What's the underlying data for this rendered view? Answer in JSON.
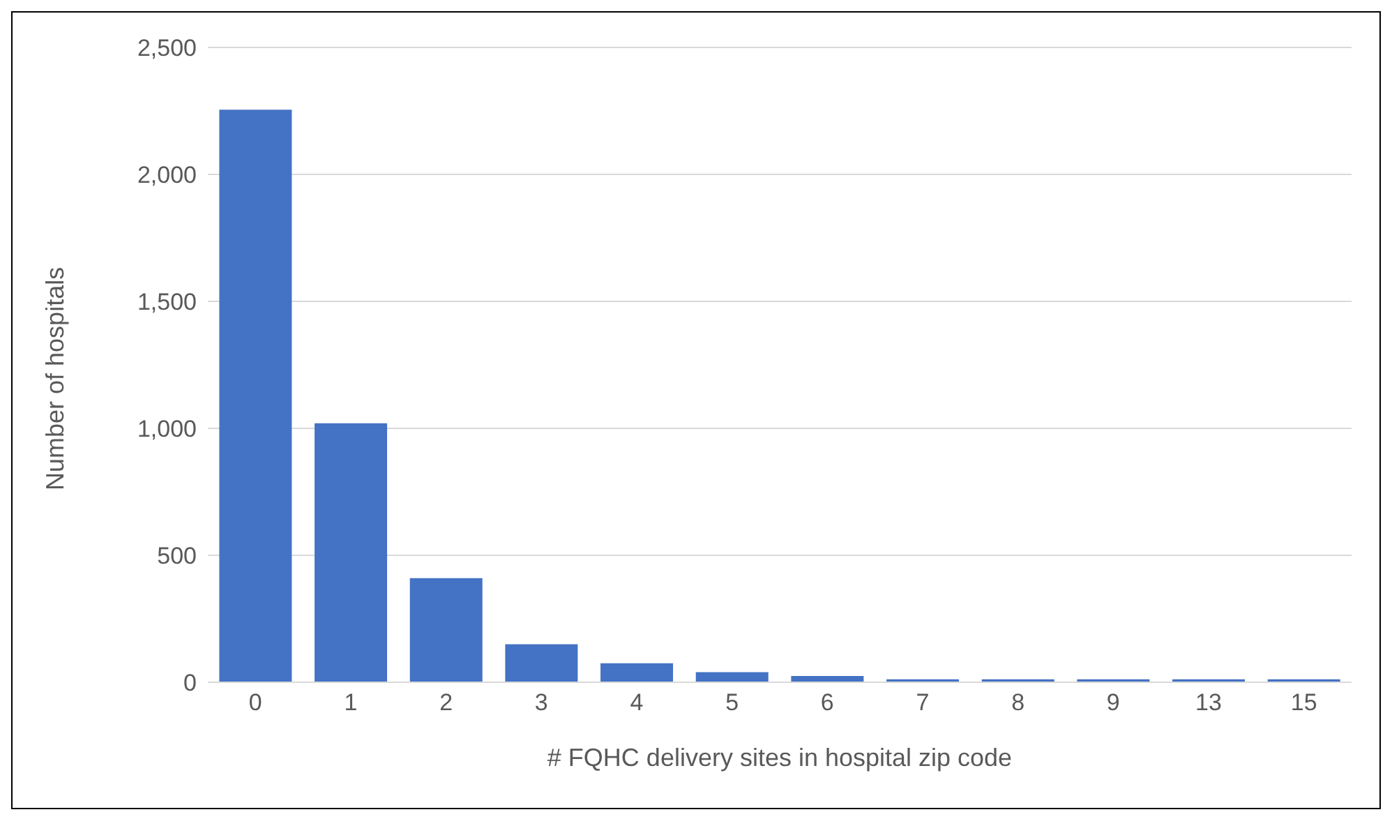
{
  "chart_data": {
    "type": "bar",
    "xlabel": "# FQHC delivery sites in hospital zip code",
    "ylabel": "Number of hospitals",
    "categories": [
      "0",
      "1",
      "2",
      "3",
      "4",
      "5",
      "6",
      "7",
      "8",
      "9",
      "13",
      "15"
    ],
    "values": [
      2255,
      1020,
      410,
      150,
      75,
      40,
      25,
      12,
      12,
      12,
      12,
      12
    ],
    "color": "#4472c4",
    "ylim": [
      0,
      2500
    ],
    "yticks": [
      {
        "value": 0,
        "label": "0"
      },
      {
        "value": 500,
        "label": "500"
      },
      {
        "value": 1000,
        "label": "1,000"
      },
      {
        "value": 1500,
        "label": "1,500"
      },
      {
        "value": 2000,
        "label": "2,000"
      },
      {
        "value": 2500,
        "label": "2,500"
      }
    ],
    "grid": "y"
  }
}
